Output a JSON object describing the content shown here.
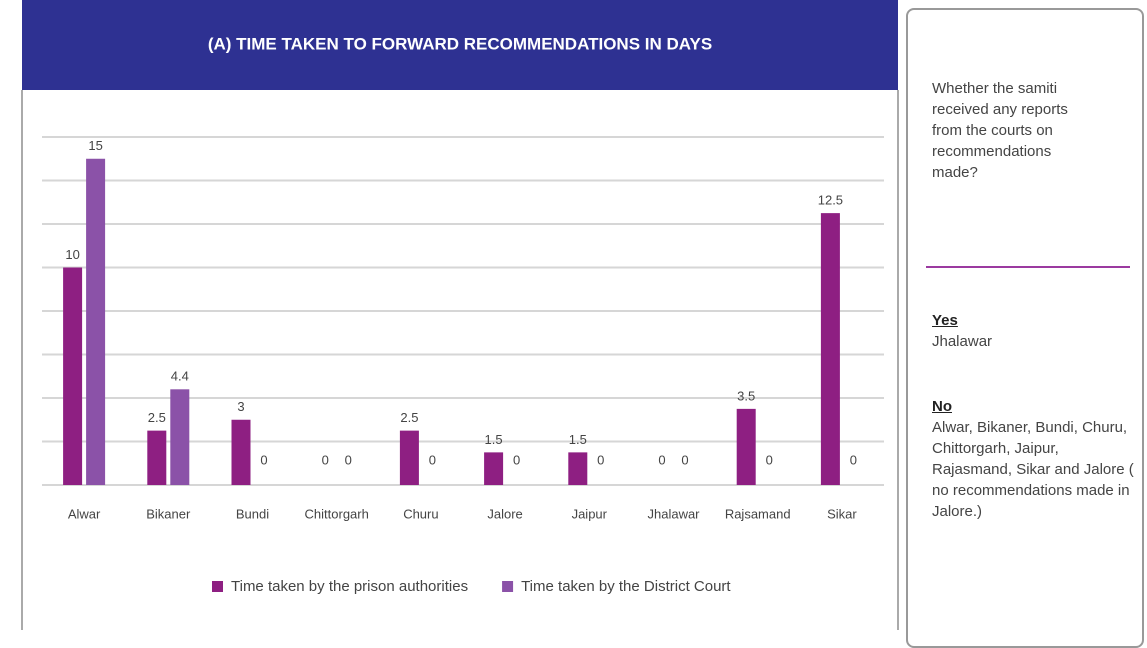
{
  "chart_data": {
    "type": "bar",
    "title": "(A) TIME TAKEN TO FORWARD RECOMMENDATIONS IN DAYS",
    "categories": [
      "Alwar",
      "Bikaner",
      "Bundi",
      "Chittorgarh",
      "Churu",
      "Jalore",
      "Jaipur",
      "Jhalawar",
      "Rajsamand",
      "Sikar"
    ],
    "series": [
      {
        "name": "Time taken by the prison authorities",
        "color": "#8e1f82",
        "values": [
          10,
          2.5,
          3,
          0,
          2.5,
          1.5,
          1.5,
          0,
          3.5,
          12.5
        ]
      },
      {
        "name": "Time taken by the District Court",
        "color": "#8b52a8",
        "values": [
          15,
          4.4,
          0,
          0,
          0,
          0,
          0,
          0,
          0,
          0
        ]
      }
    ],
    "ylim": [
      0,
      16
    ],
    "yticks": [
      0,
      2,
      4,
      6,
      8,
      10,
      12,
      14,
      16
    ],
    "grid": true,
    "legend": "bottom"
  },
  "side_panel": {
    "question": "Whether the samiti received any reports from the courts on recommendations made?",
    "yes_heading": "Yes",
    "yes_text": "Jhalawar",
    "no_heading": "No",
    "no_text": "Alwar, Bikaner, Bundi, Churu, Chittorgarh, Jaipur, Rajasmand, Sikar and Jalore ( no recommendations made in Jalore.)"
  }
}
